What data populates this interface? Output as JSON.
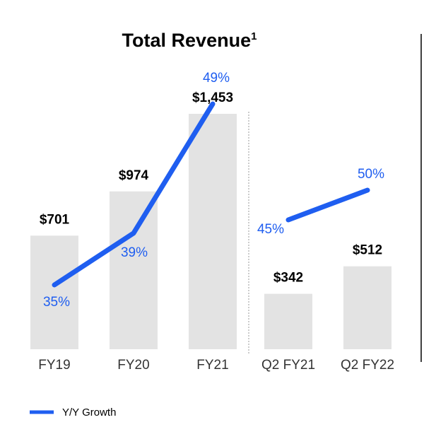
{
  "colors": {
    "bar": "#e3e3e3",
    "growth_line": "#1f5ef0",
    "text": "#000000",
    "axis_label": "#333333"
  },
  "chart_data": {
    "type": "bar",
    "title": "Total Revenue",
    "title_superscript": "1",
    "categories": [
      "FY19",
      "FY20",
      "FY21",
      "Q2 FY21",
      "Q2 FY22"
    ],
    "series": [
      {
        "values": [
          701,
          974,
          1453,
          342,
          512
        ],
        "labels": [
          "$701",
          "$974",
          "$1,453",
          "$342",
          "$512"
        ]
      },
      {
        "name": "Y/Y Growth",
        "type": "line",
        "groups": [
          [
            "FY19",
            "FY20",
            "FY21"
          ],
          [
            "Q2 FY21",
            "Q2 FY22"
          ]
        ],
        "values": [
          35,
          39,
          49,
          45,
          50
        ],
        "labels": [
          "35%",
          "39%",
          "49%",
          "45%",
          "50%"
        ]
      }
    ],
    "legend": {
      "position": "bottom-left",
      "entries": [
        "Y/Y Growth"
      ]
    },
    "grid": false
  }
}
